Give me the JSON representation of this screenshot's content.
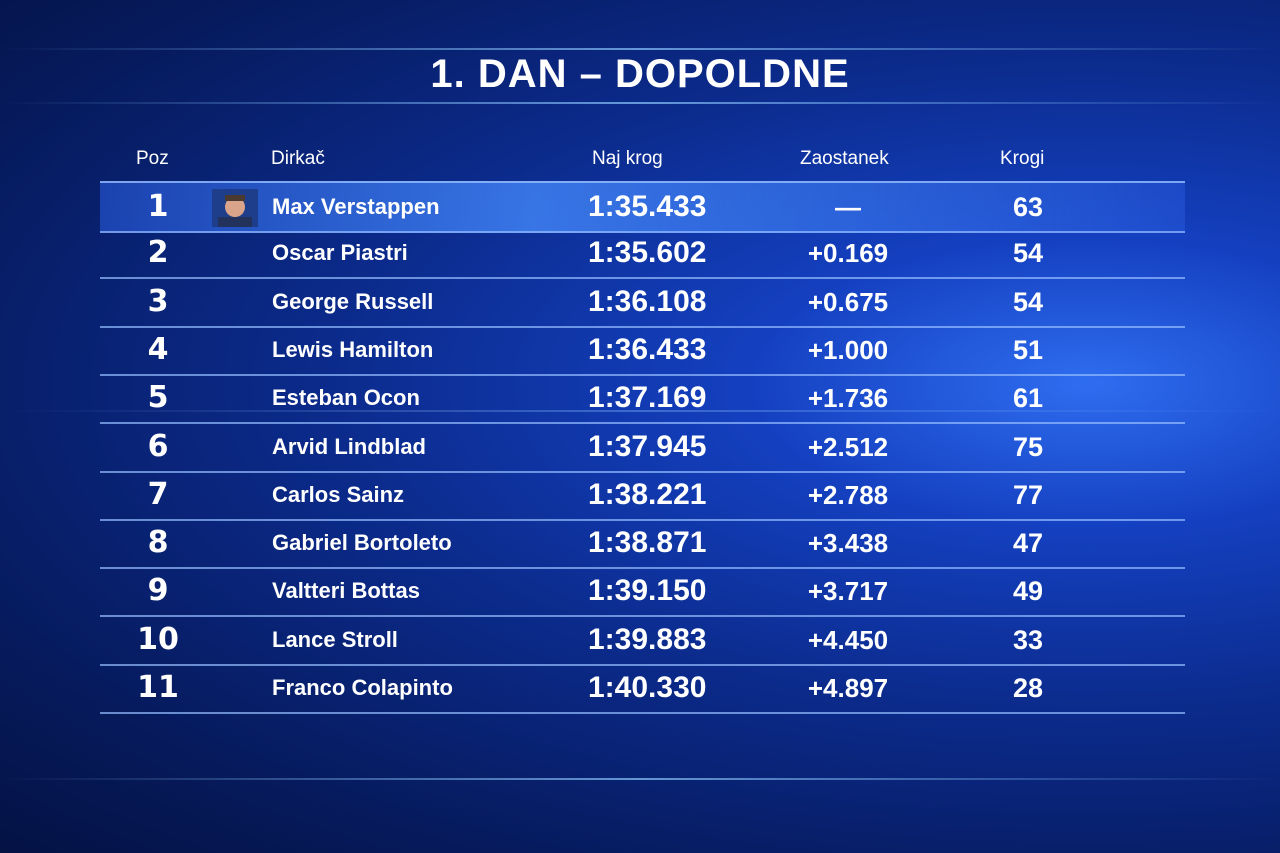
{
  "title": "1. DAN – DOPOLDNE",
  "table": {
    "headers": [
      "Poz",
      "Dirkač",
      "Naj krog",
      "Zaostanek",
      "Krogi"
    ],
    "rows": [
      [
        "1",
        "Max Verstappen",
        "1:35.433",
        "—",
        "63"
      ],
      [
        "2",
        "Oscar Piastri",
        "1:35.602",
        "+0.169",
        "54"
      ],
      [
        "3",
        "George Russell",
        "1:36.108",
        "+0.675",
        "54"
      ],
      [
        "4",
        "Lewis Hamilton",
        "1:36.433",
        "+1.000",
        "51"
      ],
      [
        "5",
        "Esteban Ocon",
        "1:37.169",
        "+1.736",
        "61"
      ],
      [
        "6",
        "Arvid Lindblad",
        "1:37.945",
        "+2.512",
        "75"
      ],
      [
        "7",
        "Carlos Sainz",
        "1:38.221",
        "+2.788",
        "77"
      ],
      [
        "8",
        "Gabriel Bortoleto",
        "1:38.871",
        "+3.438",
        "47"
      ],
      [
        "9",
        "Valtteri Bottas",
        "1:39.150",
        "+3.717",
        "49"
      ],
      [
        "10",
        "Lance Stroll",
        "1:39.883",
        "+4.450",
        "33"
      ],
      [
        "11",
        "Franco Colapinto",
        "1:40.330",
        "+4.897",
        "28"
      ]
    ]
  }
}
